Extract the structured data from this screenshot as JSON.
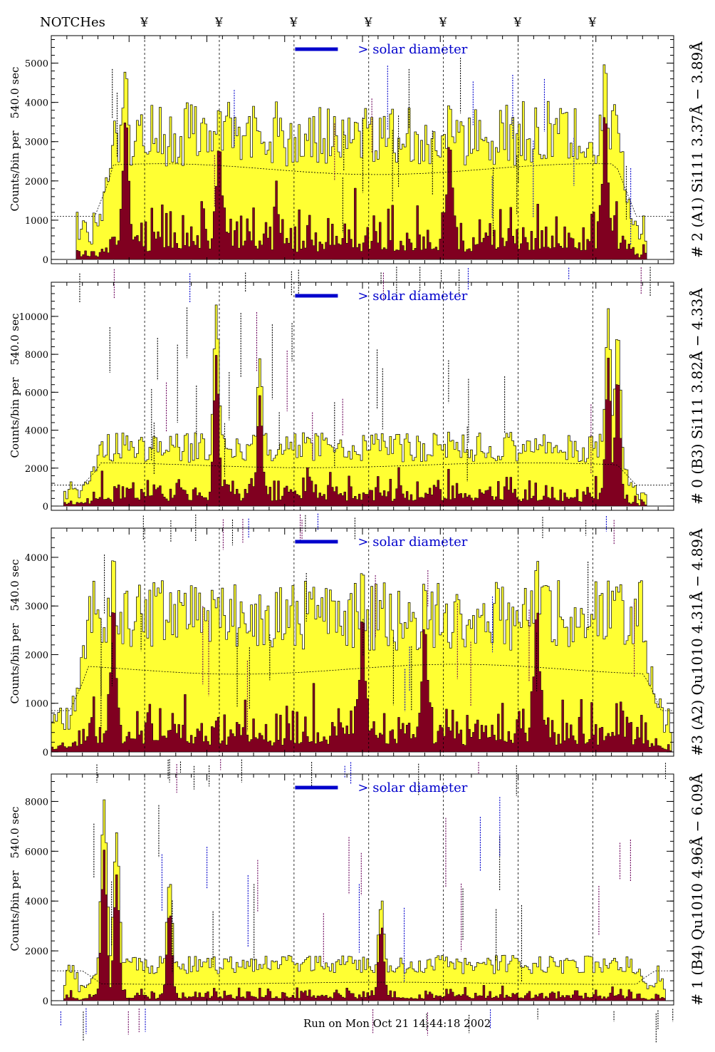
{
  "header": {
    "notches_label": "NOTCHes",
    "notch_symbol": "¥"
  },
  "footer_text": "Run on Mon Oct 21 14:44:18 2002",
  "colors": {
    "fill_total": "#ffff33",
    "fill_partial": "#800020",
    "legend": "#0000cc",
    "frame": "#000000"
  },
  "chart_data": [
    {
      "type": "bar",
      "title": "# 2 (A1) Si111  3.37Å − 3.89Å",
      "ylabel": "Counts/bin per",
      "exposure": "540.0 sec",
      "legend_label": "> solar diameter",
      "ylim": [
        0,
        5700
      ],
      "yticks": [
        0,
        1000,
        2000,
        3000,
        4000,
        5000
      ],
      "ytick_labels": [
        "0",
        "1000",
        "2000",
        "3000",
        "4000",
        "5000"
      ],
      "bins": 300,
      "support": [
        0.07,
        0.94
      ],
      "level": 3300,
      "background": 2300,
      "edge_level": 1100,
      "peaks": [
        [
          0.12,
          5100
        ],
        [
          0.27,
          4300
        ],
        [
          0.64,
          4200
        ],
        [
          0.89,
          5200
        ]
      ],
      "partial_scale": 0.38,
      "notches": [
        0.15,
        0.27,
        0.39,
        0.51,
        0.63,
        0.75,
        0.87
      ]
    },
    {
      "type": "bar",
      "title": "# 0 (B3) Si111  3.82Å − 4.33Å",
      "ylabel": "Counts/bin per",
      "exposure": "540.0 sec",
      "legend_label": "> solar diameter",
      "ylim": [
        0,
        11800
      ],
      "yticks": [
        0,
        2000,
        4000,
        6000,
        8000,
        10000
      ],
      "ytick_labels": [
        "0",
        "2000",
        "4000",
        "6000",
        "8000",
        "10000"
      ],
      "bins": 300,
      "support": [
        0.05,
        0.94
      ],
      "level": 3200,
      "background": 2150,
      "edge_level": 1100,
      "peaks": [
        [
          0.265,
          10700
        ],
        [
          0.335,
          7800
        ],
        [
          0.895,
          10500
        ],
        [
          0.91,
          10000
        ]
      ],
      "partial_scale": 0.45,
      "notches": [
        0.15,
        0.27,
        0.39,
        0.51,
        0.63,
        0.75,
        0.87
      ]
    },
    {
      "type": "bar",
      "title": "#3 (A2) Qu1010  4.31Å − 4.89Å",
      "ylabel": "Counts/bin per",
      "exposure": "540.0 sec",
      "legend_label": "> solar diameter",
      "ylim": [
        0,
        4600
      ],
      "yticks": [
        0,
        1000,
        2000,
        3000,
        4000
      ],
      "ytick_labels": [
        "0",
        "1000",
        "2000",
        "3000",
        "4000"
      ],
      "bins": 300,
      "support": [
        0.03,
        0.98
      ],
      "level": 2900,
      "background": 1700,
      "edge_level": 850,
      "peaks": [
        [
          0.1,
          4250
        ],
        [
          0.5,
          3850
        ],
        [
          0.6,
          3800
        ],
        [
          0.78,
          4150
        ]
      ],
      "partial_scale": 0.3,
      "notches": [
        0.15,
        0.27,
        0.39,
        0.51,
        0.63,
        0.75,
        0.87
      ]
    },
    {
      "type": "bar",
      "title": "# 1 (B4) Qu1010 4.96Å − 6.09Å",
      "ylabel": "Counts/bin per",
      "exposure": "540.0 sec",
      "legend_label": "> solar diameter",
      "ylim": [
        0,
        9100
      ],
      "yticks": [
        0,
        2000,
        4000,
        6000,
        8000
      ],
      "ytick_labels": [
        "0",
        "2000",
        "4000",
        "6000",
        "8000"
      ],
      "bins": 300,
      "support": [
        0.05,
        0.97
      ],
      "level": 1500,
      "background": 700,
      "edge_level": 1200,
      "peaks": [
        [
          0.085,
          8300
        ],
        [
          0.105,
          6800
        ],
        [
          0.19,
          5000
        ],
        [
          0.53,
          4200
        ]
      ],
      "partial_scale": 0.3,
      "notches": [
        0.15,
        0.27,
        0.39,
        0.51,
        0.63,
        0.75,
        0.87
      ]
    }
  ]
}
